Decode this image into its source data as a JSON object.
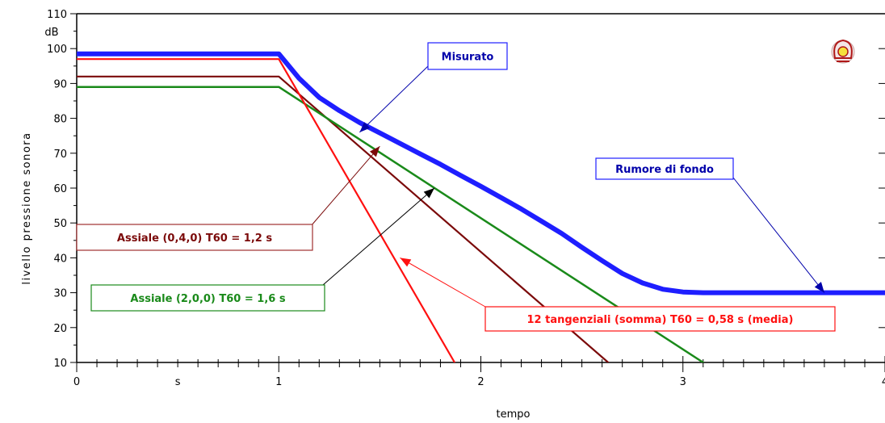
{
  "chart_data": {
    "type": "line",
    "xlabel": "tempo",
    "xunit": "s",
    "ylabel": "livello pressione sonora",
    "yunit": "dB",
    "xlim": [
      0,
      4
    ],
    "ylim": [
      10,
      110
    ],
    "x_ticks": [
      "0",
      "1",
      "2",
      "3",
      "4"
    ],
    "y_ticks": [
      "10",
      "20",
      "30",
      "40",
      "50",
      "60",
      "70",
      "80",
      "90",
      "100",
      "110"
    ],
    "grid": false,
    "series": [
      {
        "name": "Misurato",
        "color": "#1e1eff",
        "points": [
          [
            0,
            98.5
          ],
          [
            1,
            98.5
          ],
          [
            1.1,
            91.5
          ],
          [
            1.2,
            86
          ],
          [
            1.3,
            82.2
          ],
          [
            1.4,
            78.8
          ],
          [
            1.5,
            75.8
          ],
          [
            1.6,
            72.8
          ],
          [
            1.7,
            69.8
          ],
          [
            1.8,
            66.8
          ],
          [
            1.9,
            63.6
          ],
          [
            2.0,
            60.5
          ],
          [
            2.1,
            57.3
          ],
          [
            2.2,
            54
          ],
          [
            2.3,
            50.5
          ],
          [
            2.4,
            47
          ],
          [
            2.5,
            43
          ],
          [
            2.6,
            39.2
          ],
          [
            2.7,
            35.5
          ],
          [
            2.8,
            32.8
          ],
          [
            2.9,
            31
          ],
          [
            3.0,
            30.2
          ],
          [
            3.1,
            30
          ],
          [
            4,
            30
          ]
        ]
      },
      {
        "name": "Assiale (0,4,0) T60 = 1,2 s",
        "color": "#7b0a0a",
        "points": [
          [
            0,
            92
          ],
          [
            1,
            92
          ],
          [
            2.63,
            10
          ]
        ]
      },
      {
        "name": "Assiale (2,0,0) T60 = 1,6 s",
        "color": "#1a8a1a",
        "points": [
          [
            0,
            89
          ],
          [
            1,
            89
          ],
          [
            3.1,
            10
          ]
        ]
      },
      {
        "name": "12 tangenziali (somma) T60 = 0,58 s (media)",
        "color": "#ff1010",
        "points": [
          [
            0,
            97
          ],
          [
            1,
            97
          ],
          [
            1.87,
            10
          ]
        ]
      }
    ],
    "annotations": [
      {
        "text": "Misurato",
        "color": "#0000aa",
        "target": [
          1.4,
          76
        ]
      },
      {
        "text": "Rumore di fondo",
        "color": "#0000aa",
        "target": [
          3.7,
          30
        ]
      },
      {
        "text": "Assiale (0,4,0) T60 = 1,2 s",
        "color": "#7b0a0a",
        "target": [
          1.5,
          72
        ]
      },
      {
        "text": "Assiale (2,0,0) T60 = 1,6 s",
        "color": "#1a8a1a",
        "target": [
          1.77,
          60
        ]
      },
      {
        "text": "12 tangenziali (somma) T60 = 0,58 s (media)",
        "color": "#ff1010",
        "target": [
          1.6,
          40
        ]
      }
    ]
  }
}
